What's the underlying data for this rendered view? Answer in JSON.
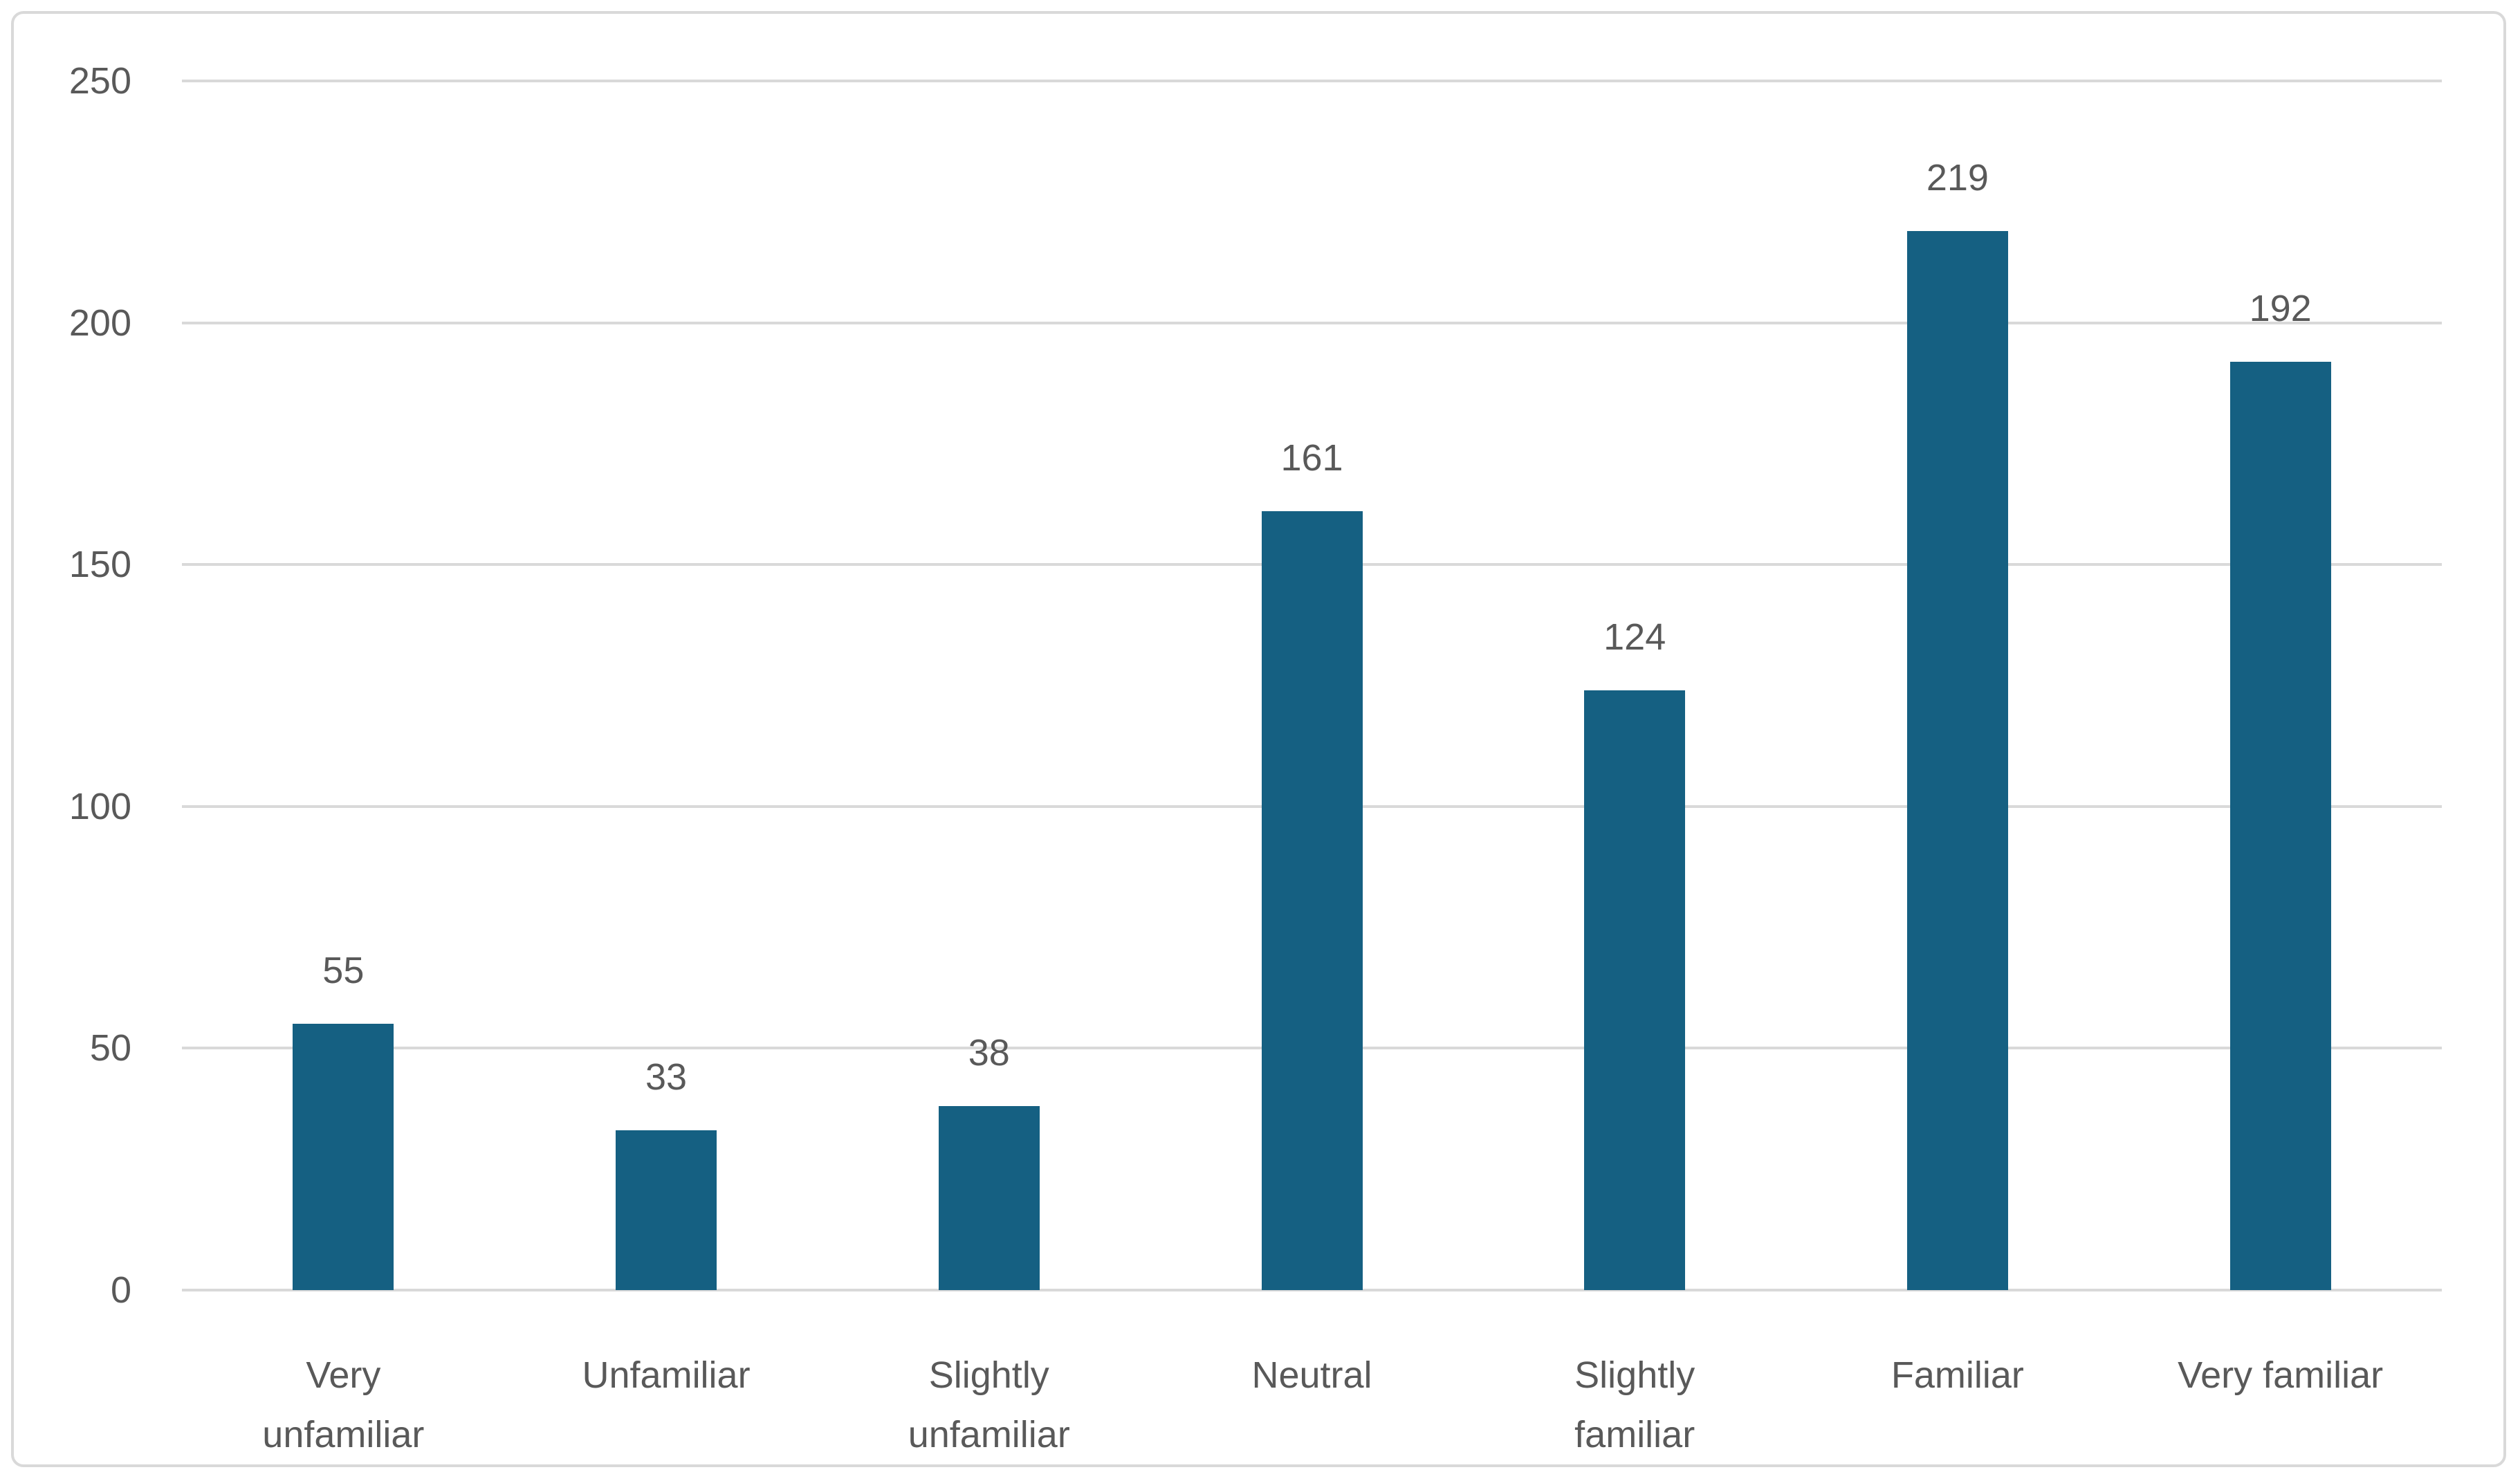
{
  "chart_data": {
    "type": "bar",
    "title": "",
    "xlabel": "",
    "ylabel": "",
    "categories": [
      "Very unfamiliar",
      "Unfamiliar",
      "Slightly unfamiliar",
      "Neutral",
      "Slightly familiar",
      "Familiar",
      "Very familiar"
    ],
    "category_lines": [
      [
        "Very",
        "unfamiliar"
      ],
      [
        "Unfamiliar"
      ],
      [
        "Slightly",
        "unfamiliar"
      ],
      [
        "Neutral"
      ],
      [
        "Slightly",
        "familiar"
      ],
      [
        "Familiar"
      ],
      [
        "Very familiar"
      ]
    ],
    "values": [
      55,
      33,
      38,
      161,
      124,
      219,
      192
    ],
    "data_labels": [
      "55",
      "33",
      "38",
      "161",
      "124",
      "219",
      "192"
    ],
    "yticks": [
      0,
      50,
      100,
      150,
      200,
      250
    ],
    "ytick_labels": [
      "0",
      "50",
      "100",
      "150",
      "200",
      "250"
    ],
    "ylim": [
      0,
      250
    ],
    "grid": "horizontal",
    "legend": "none"
  },
  "colors": {
    "bar_fill": "#156082",
    "gridline": "#d9d9d9",
    "axis_text": "#595959",
    "chart_border": "#d9d9d9",
    "background": "#ffffff"
  }
}
